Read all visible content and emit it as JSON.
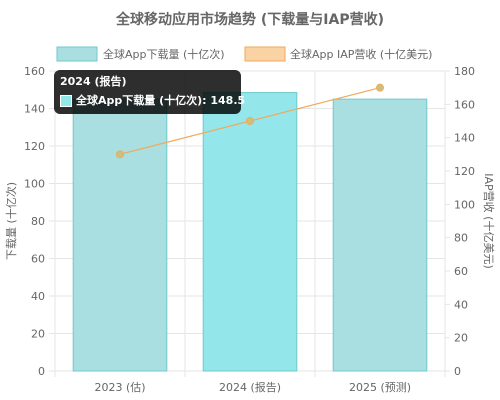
{
  "chart_data": {
    "type": "bar",
    "title": "全球移动应用市场趋势 (下载量与IAP营收)",
    "categories": [
      "2023 (估)",
      "2024 (报告)",
      "2025 (预测)"
    ],
    "series": [
      {
        "name": "全球App下载量 (十亿次)",
        "type": "bar",
        "axis": "left",
        "values": [
          145,
          148.5,
          145
        ],
        "color": "#a9dfe0",
        "highlight_color": "#93e6ea",
        "border_color": "#6fc9cb"
      },
      {
        "name": "全球App IAP营收 (十亿美元)",
        "type": "line",
        "axis": "right",
        "values": [
          130,
          150,
          170
        ],
        "color": "#f1a85c",
        "point_color": "#c9c27d"
      }
    ],
    "y_left": {
      "label": "下载量 (十亿次)",
      "min": 0,
      "max": 160,
      "step": 20
    },
    "y_right": {
      "label": "IAP营收 (十亿美元)",
      "min": 0,
      "max": 180,
      "step": 20
    },
    "grid": true,
    "legend_position": "top",
    "highlighted_category": "2024 (报告)"
  },
  "tooltip": {
    "title": "2024 (报告)",
    "line": "全球App下载量 (十亿次): 148.5"
  }
}
